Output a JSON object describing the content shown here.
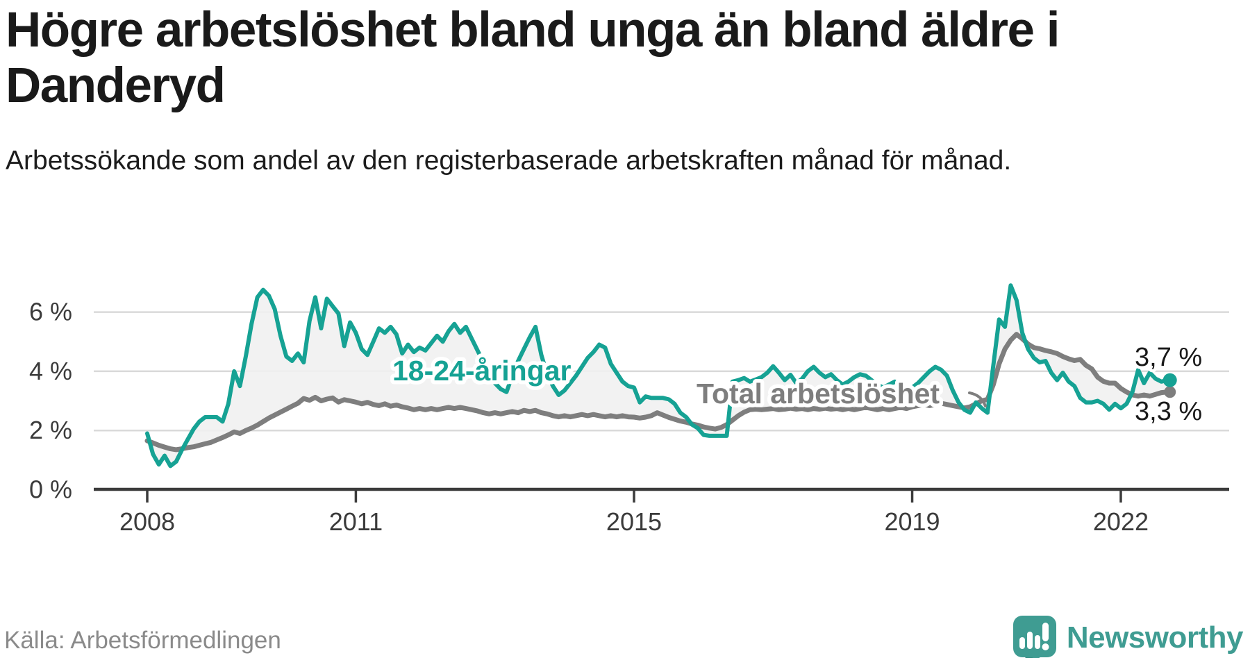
{
  "header": {
    "title": "Högre arbetslöshet bland unga än bland äldre i Danderyd",
    "subtitle": "Arbetssökande som andel av den registerbaserade arbetskraften månad för månad."
  },
  "footer": {
    "source": "Källa: Arbetsförmedlingen",
    "brand": "Newsworthy",
    "logo_icon": "speech-bubble-bar-chart-icon"
  },
  "colors": {
    "youth_line": "#16a294",
    "total_line": "#7e7e7e",
    "band_fill": "#f0f0f0",
    "grid": "#d9d9d9",
    "axis": "#3b3b3b",
    "title_text": "#1a1a1a",
    "source_text": "#8a8a8a",
    "brand_teal": "#3f9c92"
  },
  "chart_data": {
    "type": "line",
    "title": "Högre arbetslöshet bland unga än bland äldre i Danderyd",
    "subtitle": "Arbetssökande som andel av den registerbaserade arbetskraften månad för månad.",
    "source": "Källa: Arbetsförmedlingen",
    "x_unit": "month",
    "x_start": "2008-01",
    "x_end": "2022-09",
    "ylim": [
      0,
      7.3
    ],
    "grid": "horizontal",
    "y_ticks": [
      {
        "value": 0,
        "label": "0 %"
      },
      {
        "value": 2,
        "label": "2 %"
      },
      {
        "value": 4,
        "label": "4 %"
      },
      {
        "value": 6,
        "label": "6 %"
      }
    ],
    "x_ticks": [
      {
        "year": 2008,
        "label": "2008"
      },
      {
        "year": 2011,
        "label": "2011"
      },
      {
        "year": 2015,
        "label": "2015"
      },
      {
        "year": 2019,
        "label": "2019"
      },
      {
        "year": 2022,
        "label": "2022"
      }
    ],
    "series": [
      {
        "name": "18-24-åringar",
        "color": "#16a294",
        "end_label": "3,7 %",
        "end_value": 3.7,
        "values": [
          1.9,
          1.2,
          0.85,
          1.15,
          0.8,
          0.95,
          1.35,
          1.7,
          2.05,
          2.3,
          2.45,
          2.45,
          2.45,
          2.3,
          2.9,
          4.0,
          3.5,
          4.5,
          5.6,
          6.5,
          6.75,
          6.55,
          6.1,
          5.2,
          4.5,
          4.35,
          4.6,
          4.3,
          5.7,
          6.5,
          5.45,
          6.45,
          6.2,
          5.95,
          4.85,
          5.65,
          5.3,
          4.75,
          4.55,
          5.0,
          5.45,
          5.3,
          5.5,
          5.25,
          4.6,
          4.9,
          4.65,
          4.8,
          4.7,
          4.95,
          5.2,
          5.0,
          5.35,
          5.6,
          5.3,
          5.5,
          5.1,
          4.7,
          4.3,
          3.8,
          3.6,
          3.4,
          3.3,
          3.85,
          4.35,
          4.75,
          5.15,
          5.5,
          4.55,
          3.9,
          3.5,
          3.2,
          3.35,
          3.6,
          3.85,
          4.15,
          4.45,
          4.65,
          4.9,
          4.8,
          4.25,
          3.95,
          3.65,
          3.5,
          3.45,
          2.95,
          3.15,
          3.1,
          3.1,
          3.1,
          3.05,
          2.9,
          2.6,
          2.45,
          2.2,
          2.08,
          1.85,
          1.82,
          1.82,
          1.82,
          1.82,
          3.65,
          3.7,
          3.77,
          3.65,
          3.72,
          3.8,
          3.95,
          4.17,
          3.95,
          3.7,
          3.88,
          3.6,
          3.75,
          4.0,
          4.15,
          3.95,
          3.8,
          3.9,
          3.7,
          3.55,
          3.65,
          3.8,
          3.9,
          3.85,
          3.7,
          3.55,
          3.45,
          3.55,
          3.65,
          3.5,
          3.4,
          3.45,
          3.6,
          3.8,
          4.0,
          4.15,
          4.05,
          3.85,
          3.35,
          2.95,
          2.7,
          2.6,
          2.95,
          2.75,
          2.6,
          4.2,
          5.75,
          5.5,
          6.9,
          6.4,
          5.3,
          4.75,
          4.45,
          4.3,
          4.35,
          3.95,
          3.7,
          3.95,
          3.65,
          3.5,
          3.1,
          2.95,
          2.95,
          3.0,
          2.9,
          2.7,
          2.9,
          2.75,
          2.9,
          3.3,
          4.05,
          3.6,
          3.95,
          3.75,
          3.65,
          3.7
        ]
      },
      {
        "name": "Total arbetslöshet",
        "color": "#7e7e7e",
        "end_label": "3,3 %",
        "end_value": 3.3,
        "values": [
          1.65,
          1.58,
          1.5,
          1.44,
          1.38,
          1.35,
          1.38,
          1.42,
          1.45,
          1.5,
          1.55,
          1.6,
          1.68,
          1.76,
          1.85,
          1.95,
          1.9,
          2.0,
          2.08,
          2.18,
          2.3,
          2.42,
          2.52,
          2.62,
          2.72,
          2.82,
          2.92,
          3.08,
          3.02,
          3.12,
          3.0,
          3.06,
          3.1,
          2.96,
          3.04,
          3.0,
          2.96,
          2.9,
          2.95,
          2.88,
          2.84,
          2.9,
          2.82,
          2.86,
          2.8,
          2.76,
          2.7,
          2.74,
          2.7,
          2.74,
          2.7,
          2.74,
          2.78,
          2.74,
          2.78,
          2.74,
          2.7,
          2.66,
          2.6,
          2.56,
          2.6,
          2.56,
          2.6,
          2.64,
          2.6,
          2.68,
          2.64,
          2.68,
          2.6,
          2.56,
          2.5,
          2.46,
          2.5,
          2.46,
          2.5,
          2.54,
          2.5,
          2.54,
          2.5,
          2.46,
          2.5,
          2.46,
          2.5,
          2.46,
          2.45,
          2.42,
          2.45,
          2.5,
          2.6,
          2.52,
          2.44,
          2.38,
          2.32,
          2.28,
          2.22,
          2.18,
          2.12,
          2.08,
          2.05,
          2.1,
          2.2,
          2.35,
          2.5,
          2.62,
          2.7,
          2.72,
          2.7,
          2.72,
          2.74,
          2.7,
          2.72,
          2.75,
          2.72,
          2.74,
          2.7,
          2.74,
          2.72,
          2.75,
          2.72,
          2.74,
          2.7,
          2.74,
          2.7,
          2.74,
          2.78,
          2.74,
          2.7,
          2.74,
          2.7,
          2.74,
          2.78,
          2.74,
          2.8,
          2.84,
          2.88,
          2.84,
          2.88,
          2.92,
          2.88,
          2.84,
          2.8,
          2.76,
          2.8,
          2.9,
          3.0,
          3.05,
          3.55,
          4.25,
          4.75,
          5.05,
          5.25,
          5.1,
          4.92,
          4.8,
          4.76,
          4.7,
          4.66,
          4.6,
          4.5,
          4.42,
          4.36,
          4.4,
          4.2,
          4.08,
          3.8,
          3.66,
          3.6,
          3.6,
          3.42,
          3.3,
          3.2,
          3.16,
          3.2,
          3.16,
          3.22,
          3.28,
          3.3
        ]
      }
    ]
  }
}
